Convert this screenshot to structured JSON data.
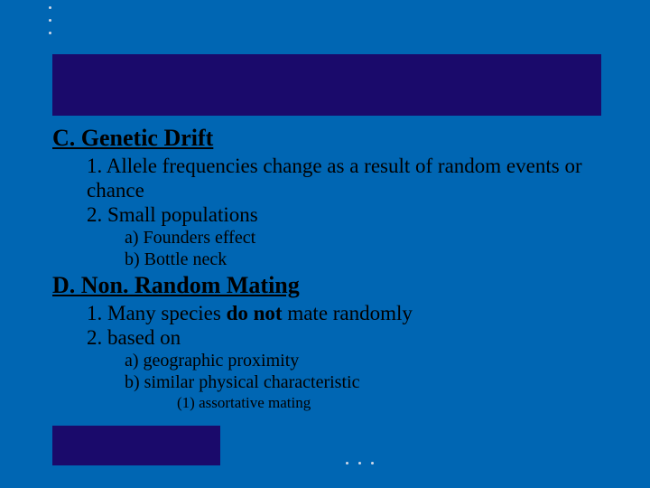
{
  "slide": {
    "background_color": "#0066b3",
    "text_color": "#000000",
    "accent_bar_color": "#1a0a6b",
    "dot_color": "#d0d8e8",
    "font_family": "Times New Roman",
    "heading_fontsize": 26,
    "level1_fontsize": 23,
    "level2_fontsize": 20,
    "level3_fontsize": 17
  },
  "sectionC": {
    "title": "C. Genetic Drift",
    "item1": "1. Allele frequencies change as a result of random events or chance",
    "item2": "2. Small populations",
    "sub_a": "a)  Founders effect",
    "sub_b": "b) Bottle neck"
  },
  "sectionD": {
    "title": "D. Non. Random Mating",
    "item1_pre": "1. Many species ",
    "item1_bold": "do not",
    "item1_post": " mate randomly",
    "item2": "2. based on",
    "sub_a": "a)  geographic proximity",
    "sub_b": "b) similar physical characteristic",
    "subsub_1": "(1) assortative  mating"
  }
}
